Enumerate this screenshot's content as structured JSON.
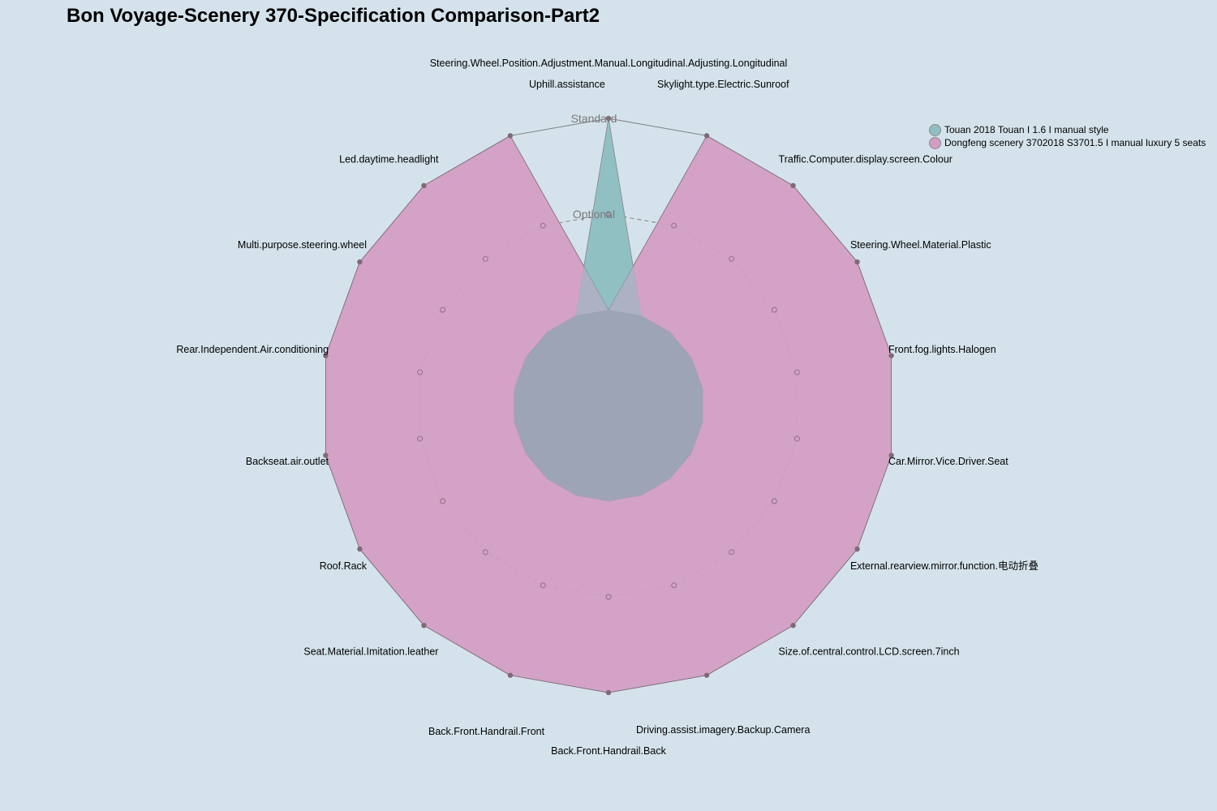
{
  "title": "Bon Voyage-Scenery 370-Specification Comparison-Part2",
  "chart_data": {
    "type": "radar",
    "title": "Bon Voyage-Scenery 370-Specification Comparison-Part2",
    "levels": [
      "Optional",
      "Standard"
    ],
    "axes": [
      "Steering.Wheel.Position.Adjustment.Manual.Longitudinal.Adjusting.Longitudinal",
      "Skylight.type.Electric.Sunroof",
      "Traffic.Computer.display.screen.Colour",
      "Steering.Wheel.Material.Plastic",
      "Front.fog.lights.Halogen",
      "Car.Mirror.Vice.Driver.Seat",
      "External.rearview.mirror.function.电动折叠",
      "Size.of.central.control.LCD.screen.7inch",
      "Driving.assist.imagery.Backup.Camera",
      "Back.Front.Handrail.Back",
      "Back.Front.Handrail.Front",
      "Seat.Material.Imitation.leather",
      "Roof.Rack",
      "Backseat.air.outlet",
      "Rear.Independent.Air.conditioning",
      "Multi.purpose.steering.wheel",
      "Led.daytime.headlight",
      "Uphill.assistance"
    ],
    "series": [
      {
        "name": "Touan 2018 Touan I 1.6 I manual style",
        "color": "#8fbfc2",
        "values": [
          2,
          0,
          0,
          0,
          0,
          0,
          0,
          0,
          0,
          0,
          0,
          0,
          0,
          0,
          0,
          0,
          0,
          0
        ]
      },
      {
        "name": "Dongfeng scenery 3702018 S3701.5 I manual luxury 5 seats",
        "color": "#d49cc2",
        "values": [
          0,
          2,
          2,
          2,
          2,
          2,
          2,
          2,
          2,
          2,
          2,
          2,
          2,
          2,
          2,
          2,
          2,
          2
        ]
      }
    ],
    "legend_position": "top-right"
  }
}
